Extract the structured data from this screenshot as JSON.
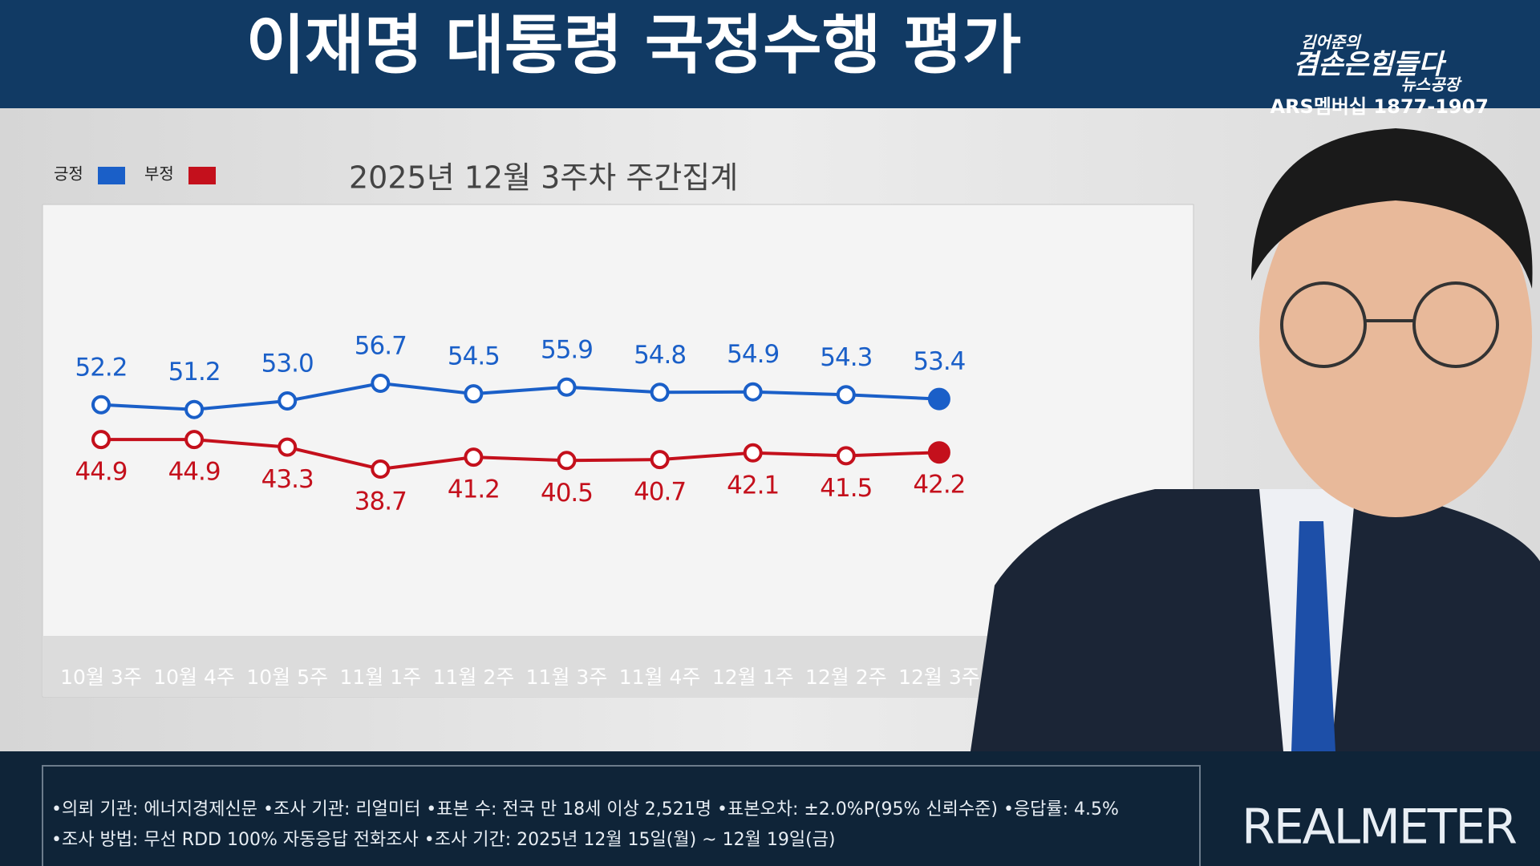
{
  "header": {
    "title": "이재명 대통령 국정수행 평가",
    "logo_top": "김어준의",
    "logo_main": "겸손은힘들다",
    "logo_sub": "뉴스공장",
    "logo_phone": "ARS멤버십 1877-1907"
  },
  "chart_data": {
    "type": "line",
    "title": "2025년 12월 3주차 주간집계",
    "categories": [
      "10월 3주",
      "10월 4주",
      "10월 5주",
      "11월 1주",
      "11월 2주",
      "11월 3주",
      "11월 4주",
      "12월 1주",
      "12월 2주",
      "12월 3주"
    ],
    "series": [
      {
        "name": "긍정",
        "color": "#1a5fc8",
        "values": [
          52.2,
          51.2,
          53.0,
          56.7,
          54.5,
          55.9,
          54.8,
          54.9,
          54.3,
          53.4
        ],
        "value_labels": [
          "52.2",
          "51.2",
          "53.0",
          "56.7",
          "54.5",
          "55.9",
          "54.8",
          "54.9",
          "54.3",
          "53.4"
        ]
      },
      {
        "name": "부정",
        "color": "#c4101c",
        "values": [
          44.9,
          44.9,
          43.3,
          38.7,
          41.2,
          40.5,
          40.7,
          42.1,
          41.5,
          42.2
        ]
      }
    ]
  },
  "footer": {
    "notes": [
      "•의뢰 기관: 에너지경제신문 •조사 기관: 리얼미터 •표본 수: 전국 만 18세 이상 2,521명 •표본오차: ±2.0%P(95% 신뢰수준) •응답률: 4.5%",
      "•조사 방법: 무선 RDD 100% 자동응답 전화조사 •조사 기간: 2025년 12월 15일(월) ~ 12월 19일(금)"
    ],
    "brand": "REALMETER"
  }
}
